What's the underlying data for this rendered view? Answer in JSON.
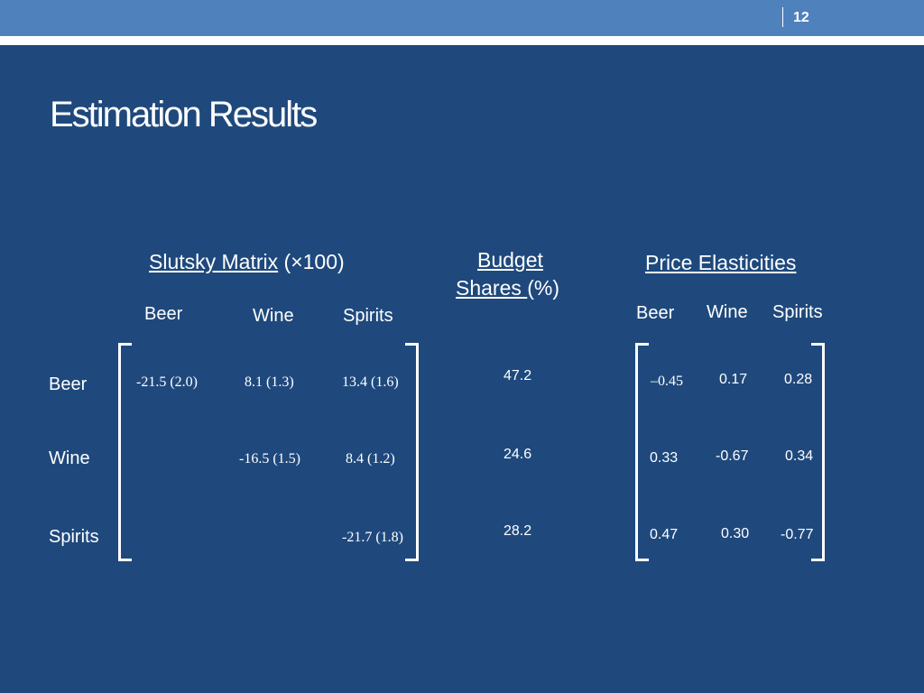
{
  "page_number": "12",
  "title": "Estimation Results",
  "slutsky": {
    "heading_link": "Slutsky Matrix",
    "heading_suffix": "(×100)",
    "columns": [
      "Beer",
      "Wine",
      "Spirits"
    ],
    "rows": [
      [
        "-21.5  (2.0)",
        "8.1  (1.3)",
        "13.4  (1.6)"
      ],
      [
        "",
        "-16.5  (1.5)",
        "8.4  (1.2)"
      ],
      [
        "",
        "",
        "-21.7 (1.8)"
      ]
    ]
  },
  "row_labels": [
    "Beer",
    "Wine",
    "Spirits"
  ],
  "budget": {
    "heading_line1": "Budget",
    "heading_line2": "Shares ",
    "heading_suffix": "(%)",
    "values": [
      "47.2",
      "24.6",
      "28.2"
    ]
  },
  "elasticities": {
    "heading": "Price Elasticities",
    "columns": [
      "Beer",
      "Wine",
      "Spirits"
    ],
    "rows": [
      [
        "–0.45",
        "0.17",
        "0.28"
      ],
      [
        "0.33",
        "-0.67",
        "0.34"
      ],
      [
        "0.47",
        "0.30",
        "-0.77"
      ]
    ]
  }
}
